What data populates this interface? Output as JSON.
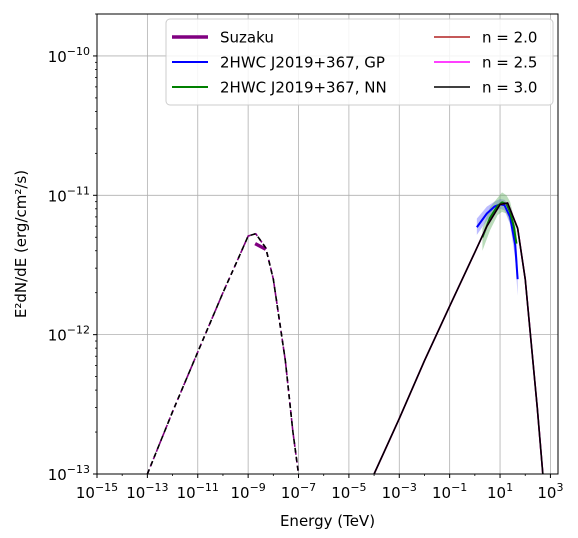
{
  "chart_data": {
    "type": "line",
    "title": "",
    "xlabel": "Energy (TeV)",
    "ylabel": "E²dN/dE (erg/cm²/s)",
    "xscale": "log",
    "yscale": "log",
    "xlim": [
      1e-15,
      2000.0
    ],
    "ylim": [
      1e-13,
      2e-10
    ],
    "grid": true,
    "legend_position": "top-right",
    "x_ticks": [
      {
        "value": 1e-15,
        "base": "10",
        "exp": "−15"
      },
      {
        "value": 1e-13,
        "base": "10",
        "exp": "−13"
      },
      {
        "value": 1e-11,
        "base": "10",
        "exp": "−11"
      },
      {
        "value": 1e-09,
        "base": "10",
        "exp": "−9"
      },
      {
        "value": 1e-07,
        "base": "10",
        "exp": "−7"
      },
      {
        "value": 1e-05,
        "base": "10",
        "exp": "−5"
      },
      {
        "value": 0.001,
        "base": "10",
        "exp": "−3"
      },
      {
        "value": 0.1,
        "base": "10",
        "exp": "−1"
      },
      {
        "value": 10.0,
        "base": "10",
        "exp": "1"
      },
      {
        "value": 1000.0,
        "base": "10",
        "exp": "3"
      }
    ],
    "y_ticks": [
      {
        "value": 1e-13,
        "base": "10",
        "exp": "−13"
      },
      {
        "value": 1e-12,
        "base": "10",
        "exp": "−12"
      },
      {
        "value": 1e-11,
        "base": "10",
        "exp": "−11"
      },
      {
        "value": 1e-10,
        "base": "10",
        "exp": "−10"
      }
    ],
    "bands": [
      {
        "name": "2HWC J2019+367, GP band",
        "color": "#6b6bff",
        "x": [
          1.2,
          3,
          6,
          10,
          15,
          25,
          40,
          50
        ],
        "upper": [
          6.8e-12,
          8.3e-12,
          9e-12,
          9.4e-12,
          9.3e-12,
          8.2e-12,
          5.5e-12,
          3.4e-12
        ],
        "lower": [
          5.2e-12,
          6.6e-12,
          7.6e-12,
          8e-12,
          7.8e-12,
          6.2e-12,
          3.5e-12,
          1.9e-12
        ]
      },
      {
        "name": "2HWC J2019+367, NN band",
        "color": "#66b266",
        "x": [
          2,
          4,
          8,
          12,
          18,
          25,
          35,
          45
        ],
        "upper": [
          5.8e-12,
          8.2e-12,
          9.6e-12,
          1.05e-11,
          1e-11,
          9e-12,
          7e-12,
          5.5e-12
        ],
        "lower": [
          4e-12,
          5.6e-12,
          7.2e-12,
          7.6e-12,
          7.4e-12,
          6.4e-12,
          5e-12,
          3.9e-12
        ]
      }
    ],
    "series": [
      {
        "name": "Suzaku",
        "color": "#800080",
        "width": 3.5,
        "dash": "",
        "x": [
          1.9e-09,
          5e-09
        ],
        "y": [
          4.5e-12,
          4.1e-12
        ]
      },
      {
        "name": "2HWC J2019+367, GP",
        "color": "#0000ff",
        "width": 2,
        "dash": "",
        "x": [
          1.2,
          3,
          6,
          10,
          15,
          25,
          40,
          50
        ],
        "y": [
          5.9e-12,
          7.4e-12,
          8.3e-12,
          8.6e-12,
          8.5e-12,
          7e-12,
          4.4e-12,
          2.5e-12
        ]
      },
      {
        "name": "2HWC J2019+367, NN",
        "color": "#008000",
        "width": 2,
        "dash": "",
        "x": [
          2,
          4,
          8,
          12,
          18,
          25,
          35,
          45
        ],
        "y": [
          5e-12,
          6.9e-12,
          8.4e-12,
          8.9e-12,
          8.7e-12,
          7.6e-12,
          6e-12,
          4.5e-12
        ]
      },
      {
        "name": "n = 2.0",
        "color": "#b22222",
        "width": 1.6,
        "dash": "",
        "x": [
          0.0001,
          0.001,
          0.01,
          0.1,
          1,
          3,
          10,
          20,
          50,
          100,
          300,
          500
        ],
        "y": [
          1e-13,
          2.5e-13,
          6.5e-13,
          1.6e-12,
          3.9e-12,
          6e-12,
          8.6e-12,
          8.8e-12,
          5.8e-12,
          2.5e-12,
          3e-13,
          1e-13
        ]
      },
      {
        "name": "n = 2.5",
        "color": "#ff00ff",
        "width": 1.6,
        "dash": "",
        "x": [
          0.0001,
          0.001,
          0.01,
          0.1,
          1,
          3,
          10,
          20,
          50,
          100,
          300,
          500
        ],
        "y": [
          1e-13,
          2.5e-13,
          6.5e-13,
          1.6e-12,
          3.9e-12,
          6e-12,
          8.6e-12,
          8.8e-12,
          5.8e-12,
          2.5e-12,
          3e-13,
          1e-13
        ]
      },
      {
        "name": "n = 3.0",
        "color": "#000000",
        "width": 1.6,
        "dash": "",
        "x": [
          0.0001,
          0.001,
          0.01,
          0.1,
          1,
          3,
          10,
          20,
          50,
          100,
          300,
          500
        ],
        "y": [
          1e-13,
          2.5e-13,
          6.5e-13,
          1.6e-12,
          3.9e-12,
          6e-12,
          8.6e-12,
          8.8e-12,
          5.8e-12,
          2.5e-12,
          3e-13,
          1e-13
        ]
      },
      {
        "name": "",
        "color": "#800080",
        "width": 1.6,
        "dash": "5,3",
        "x": [
          1e-13,
          1e-12,
          1e-11,
          1e-10,
          4e-10,
          1e-09,
          2e-09,
          5e-09,
          1e-08,
          3e-08,
          6e-08,
          1e-07
        ],
        "y": [
          1e-13,
          2.8e-13,
          7.5e-13,
          2e-12,
          3.5e-12,
          5.1e-12,
          5.3e-12,
          4.2e-12,
          2.5e-12,
          6.5e-13,
          2e-13,
          1e-13
        ]
      },
      {
        "name": "",
        "color": "#000000",
        "width": 1.6,
        "dash": "5,4",
        "x": [
          1e-13,
          1e-12,
          1e-11,
          1e-10,
          4e-10,
          1e-09,
          2e-09,
          5e-09,
          1e-08,
          3e-08,
          6e-08,
          1e-07
        ],
        "y": [
          1e-13,
          2.8e-13,
          7.5e-13,
          2e-12,
          3.5e-12,
          5.1e-12,
          5.3e-12,
          4.2e-12,
          2.5e-12,
          6.5e-13,
          2e-13,
          1e-13
        ]
      }
    ],
    "legend": [
      {
        "label": "Suzaku",
        "color": "#800080",
        "width": 3.5,
        "col": 0,
        "row": 0
      },
      {
        "label": "2HWC J2019+367, GP",
        "color": "#0000ff",
        "width": 2,
        "col": 0,
        "row": 1
      },
      {
        "label": "2HWC J2019+367, NN",
        "color": "#008000",
        "width": 2,
        "col": 0,
        "row": 2
      },
      {
        "label": "n = 2.0",
        "color": "#b22222",
        "width": 1.6,
        "col": 1,
        "row": 0
      },
      {
        "label": "n = 2.5",
        "color": "#ff00ff",
        "width": 1.6,
        "col": 1,
        "row": 1
      },
      {
        "label": "n = 3.0",
        "color": "#000000",
        "width": 1.6,
        "col": 1,
        "row": 2
      }
    ]
  }
}
